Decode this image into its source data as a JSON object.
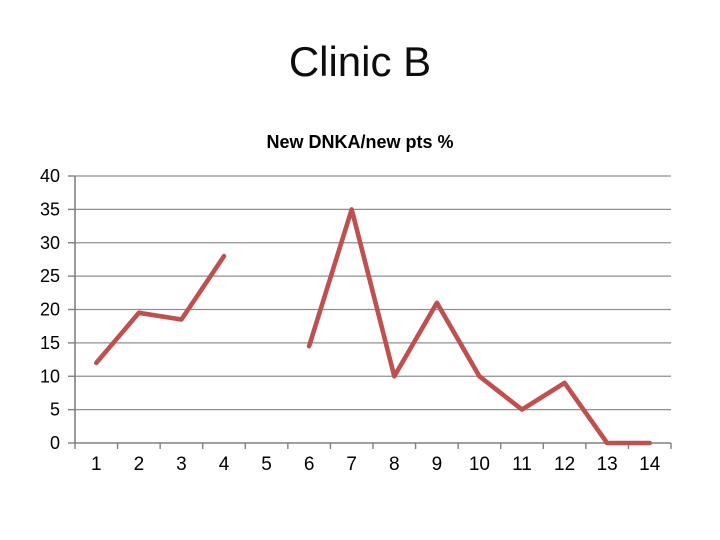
{
  "slide": {
    "title": "Clinic B",
    "background_color": "#ffffff"
  },
  "chart_data": {
    "type": "line",
    "title": "New DNKA/new pts %",
    "categories": [
      "1",
      "2",
      "3",
      "4",
      "5",
      "6",
      "7",
      "8",
      "9",
      "10",
      "11",
      "12",
      "13",
      "14"
    ],
    "values": [
      12,
      19.5,
      18.5,
      28,
      null,
      14.5,
      35,
      10,
      21,
      10,
      5,
      9,
      0,
      0
    ],
    "xlabel": "",
    "ylabel": "",
    "ylim": [
      0,
      40
    ],
    "yticks": [
      0,
      5,
      10,
      15,
      20,
      25,
      30,
      35,
      40
    ],
    "grid": true,
    "legend": "none",
    "gap_note": "no data point at category 5 (line break)",
    "line_color": "#c0504d",
    "axis_color": "#808080",
    "gridline_color": "#8f8f8f",
    "tick_label_color": "#000000",
    "title_color": "#000000"
  }
}
